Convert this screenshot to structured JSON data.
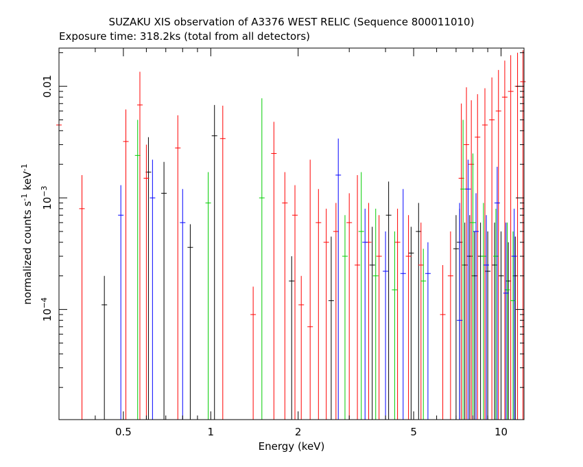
{
  "chart_data": {
    "type": "scatter",
    "title": "SUZAKU XIS observation of A3376 WEST RELIC (Sequence 800011010)",
    "subtitle": "Exposure time: 318.2ks (total from all detectors)",
    "xlabel": "Energy (keV)",
    "ylabel_main": "normalized counts s",
    "ylabel_mid": " keV",
    "ylabel_sup": "-1",
    "x_scale": "log",
    "y_scale": "log",
    "xlim": [
      0.3,
      12
    ],
    "ylim": [
      1.03e-05,
      0.022
    ],
    "x_ticks": [
      {
        "value": 0.5,
        "label": "0.5"
      },
      {
        "value": 1,
        "label": "1"
      },
      {
        "value": 2,
        "label": "2"
      },
      {
        "value": 5,
        "label": "5"
      },
      {
        "value": 10,
        "label": "10"
      }
    ],
    "y_ticks": [
      {
        "value": 0.01,
        "label": "0.01",
        "base": "",
        "exp": ""
      },
      {
        "value": 0.001,
        "label": "",
        "base": "10",
        "exp": "−3"
      },
      {
        "value": 0.0001,
        "label": "",
        "base": "10",
        "exp": "−4"
      }
    ],
    "colors": {
      "black": "#000000",
      "red": "#ff0000",
      "green": "#00cc00",
      "blue": "#0000ff"
    },
    "series": [
      {
        "color": "#000000",
        "points": [
          [
            0.43,
            0.00011,
            1.03e-05,
            0.0002
          ],
          [
            0.61,
            0.0017,
            1.03e-05,
            0.0035
          ],
          [
            0.69,
            0.0011,
            1.03e-05,
            0.0021
          ],
          [
            0.85,
            0.00036,
            1.03e-05,
            0.00058
          ],
          [
            1.03,
            0.0036,
            1.03e-05,
            0.0068
          ],
          [
            1.9,
            0.00018,
            1.03e-05,
            0.0003
          ],
          [
            2.6,
            0.00012,
            1.03e-05,
            0.00045
          ],
          [
            3.6,
            0.00025,
            1.03e-05,
            0.00055
          ],
          [
            4.1,
            0.0007,
            1.03e-05,
            0.0014
          ],
          [
            4.9,
            0.00032,
            1.03e-05,
            0.00055
          ],
          [
            5.2,
            0.0005,
            1.03e-05,
            0.0009
          ],
          [
            7.0,
            0.00035,
            1.03e-05,
            0.0007
          ],
          [
            7.2,
            0.0004,
            1.03e-05,
            0.0008
          ],
          [
            7.5,
            0.00025,
            1.03e-05,
            0.0006
          ],
          [
            7.8,
            0.0003,
            1.03e-05,
            0.0007
          ],
          [
            8.1,
            0.0002,
            1.03e-05,
            0.0005
          ],
          [
            8.5,
            0.0003,
            1.03e-05,
            0.0006
          ],
          [
            9.0,
            0.00022,
            1.03e-05,
            0.0005
          ],
          [
            9.5,
            0.00025,
            1.03e-05,
            0.0006
          ],
          [
            10.0,
            0.0002,
            1.03e-05,
            0.0005
          ],
          [
            10.6,
            0.00018,
            1.03e-05,
            0.0004
          ],
          [
            11.2,
            0.0002,
            1.03e-05,
            0.00045
          ]
        ]
      },
      {
        "color": "#ff0000",
        "points": [
          [
            0.3,
            0.0045,
            1.03e-05,
            0.009
          ],
          [
            0.36,
            0.0008,
            1.03e-05,
            0.0016
          ],
          [
            0.51,
            0.0032,
            1.03e-05,
            0.0062
          ],
          [
            0.57,
            0.0068,
            1.03e-05,
            0.0135
          ],
          [
            0.6,
            0.0015,
            1.03e-05,
            0.003
          ],
          [
            0.77,
            0.0028,
            1.03e-05,
            0.0055
          ],
          [
            1.1,
            0.0034,
            1.03e-05,
            0.0067
          ],
          [
            1.4,
            9e-05,
            1.03e-05,
            0.00016
          ],
          [
            1.65,
            0.0025,
            1.03e-05,
            0.0048
          ],
          [
            1.8,
            0.0009,
            1.03e-05,
            0.0017
          ],
          [
            1.95,
            0.0007,
            1.03e-05,
            0.0013
          ],
          [
            2.05,
            0.00011,
            1.03e-05,
            0.0002
          ],
          [
            2.2,
            7e-05,
            1.03e-05,
            0.0022
          ],
          [
            2.35,
            0.0006,
            1.03e-05,
            0.0012
          ],
          [
            2.5,
            0.0004,
            1.03e-05,
            0.0008
          ],
          [
            2.7,
            0.0005,
            1.03e-05,
            0.0009
          ],
          [
            3.0,
            0.0006,
            1.03e-05,
            0.0011
          ],
          [
            3.2,
            0.00025,
            1.03e-05,
            0.0016
          ],
          [
            3.5,
            0.0004,
            1.03e-05,
            0.0009
          ],
          [
            3.8,
            0.0003,
            1.03e-05,
            0.0007
          ],
          [
            4.4,
            0.0004,
            1.03e-05,
            0.0008
          ],
          [
            4.8,
            0.0003,
            1.03e-05,
            0.0007
          ],
          [
            5.3,
            0.00025,
            1.03e-05,
            0.0006
          ],
          [
            6.3,
            9e-05,
            1.03e-05,
            0.00025
          ],
          [
            6.7,
            0.0002,
            1.03e-05,
            0.0005
          ],
          [
            7.3,
            0.0015,
            1.03e-05,
            0.007
          ],
          [
            7.6,
            0.003,
            1.03e-05,
            0.0098
          ],
          [
            7.9,
            0.002,
            1.03e-05,
            0.0075
          ],
          [
            8.3,
            0.0035,
            1.03e-05,
            0.0085
          ],
          [
            8.8,
            0.0045,
            1.03e-05,
            0.0096
          ],
          [
            9.3,
            0.005,
            1.03e-05,
            0.012
          ],
          [
            9.8,
            0.006,
            1.03e-05,
            0.014
          ],
          [
            10.3,
            0.008,
            1.03e-05,
            0.017
          ],
          [
            10.8,
            0.009,
            1.03e-05,
            0.019
          ],
          [
            11.4,
            0.01,
            1.03e-05,
            0.02
          ],
          [
            11.9,
            0.011,
            1.03e-05,
            0.021
          ]
        ]
      },
      {
        "color": "#00cc00",
        "points": [
          [
            0.56,
            0.0024,
            1.03e-05,
            0.005
          ],
          [
            0.98,
            0.0009,
            1.03e-05,
            0.0017
          ],
          [
            1.5,
            0.001,
            1.03e-05,
            0.0078
          ],
          [
            2.9,
            0.0003,
            1.03e-05,
            0.0007
          ],
          [
            3.3,
            0.0005,
            1.03e-05,
            0.0017
          ],
          [
            3.7,
            0.0002,
            1.03e-05,
            0.0008
          ],
          [
            4.3,
            0.00015,
            1.03e-05,
            0.0005
          ],
          [
            5.4,
            0.00018,
            1.03e-05,
            0.00035
          ],
          [
            7.4,
            0.0012,
            1.03e-05,
            0.005
          ],
          [
            8.0,
            0.0006,
            1.03e-05,
            0.0025
          ],
          [
            8.7,
            0.0003,
            1.03e-05,
            0.0009
          ],
          [
            9.6,
            0.0003,
            1.03e-05,
            0.0008
          ],
          [
            10.5,
            0.00015,
            1.03e-05,
            0.0006
          ],
          [
            11.0,
            0.00012,
            1.03e-05,
            0.0005
          ]
        ]
      },
      {
        "color": "#0000ff",
        "points": [
          [
            0.49,
            0.0007,
            1.03e-05,
            0.0013
          ],
          [
            0.63,
            0.001,
            1.03e-05,
            0.0022
          ],
          [
            0.8,
            0.0006,
            1.03e-05,
            0.0012
          ],
          [
            2.75,
            0.0016,
            1.03e-05,
            0.0034
          ],
          [
            3.4,
            0.0004,
            1.03e-05,
            0.0008
          ],
          [
            4.0,
            0.00022,
            1.03e-05,
            0.0005
          ],
          [
            4.6,
            0.00021,
            1.03e-05,
            0.0012
          ],
          [
            5.6,
            0.00021,
            1.03e-05,
            0.0004
          ],
          [
            7.2,
            8e-05,
            1.03e-05,
            0.0009
          ],
          [
            7.7,
            0.0012,
            1.03e-05,
            0.0022
          ],
          [
            8.2,
            0.0005,
            1.03e-05,
            0.0011
          ],
          [
            8.9,
            0.00025,
            1.03e-05,
            0.0007
          ],
          [
            9.7,
            0.0009,
            1.03e-05,
            0.0019
          ],
          [
            10.4,
            0.00014,
            1.03e-05,
            0.0006
          ],
          [
            11.1,
            0.0003,
            1.03e-05,
            0.0008
          ]
        ]
      }
    ]
  }
}
